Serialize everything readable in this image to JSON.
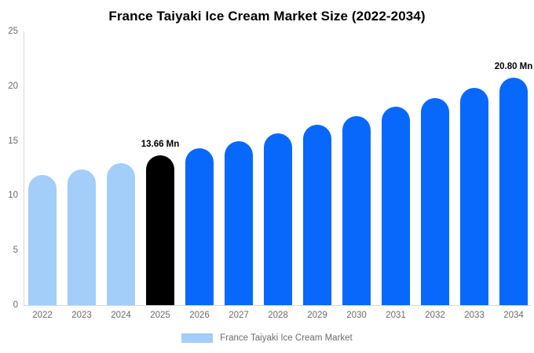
{
  "chart_data": {
    "type": "bar",
    "title": "France Taiyaki Ice Cream Market Size (2022-2034)",
    "categories": [
      "2022",
      "2023",
      "2024",
      "2025",
      "2026",
      "2027",
      "2028",
      "2029",
      "2030",
      "2031",
      "2032",
      "2033",
      "2034"
    ],
    "values": [
      11.9,
      12.4,
      13.0,
      13.66,
      14.3,
      15.0,
      15.7,
      16.5,
      17.3,
      18.1,
      18.95,
      19.85,
      20.8
    ],
    "unit": "Mn",
    "xlabel": "",
    "ylabel": "",
    "ylim": [
      0,
      25
    ],
    "yticks": [
      0,
      5,
      10,
      15,
      20,
      25
    ],
    "grid": "off",
    "legend_position": "bottom-center",
    "legend": "France Taiyaki Ice Cream Market",
    "annotations": [
      {
        "index": 3,
        "text": "13.66 Mn"
      },
      {
        "index": 12,
        "text": "20.80 Mn"
      }
    ],
    "colors": {
      "past": "#a3cefa",
      "base": "#000000",
      "forecast": "#0768fb"
    },
    "color_roles": [
      "past",
      "past",
      "past",
      "base",
      "forecast",
      "forecast",
      "forecast",
      "forecast",
      "forecast",
      "forecast",
      "forecast",
      "forecast",
      "forecast"
    ],
    "axis_color": "#d9d9d9",
    "tick_label_color": "#6b6b6b"
  }
}
